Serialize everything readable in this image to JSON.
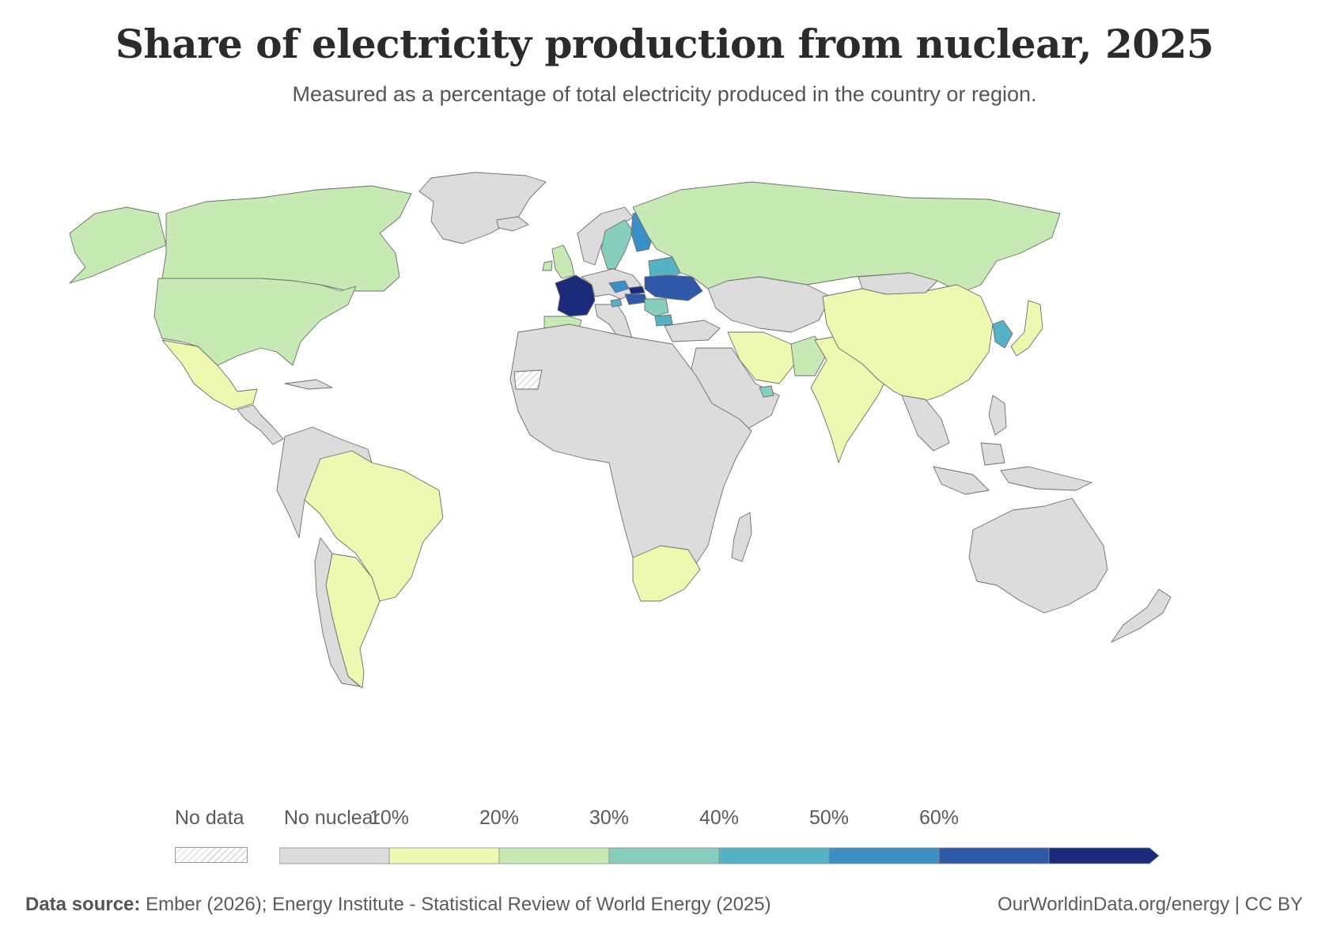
{
  "title": "Share of electricity production from nuclear, 2025",
  "subtitle": "Measured as a percentage of total electricity produced in the country or region.",
  "legend": {
    "no_data_label": "No data",
    "no_nuclear_label": "No nuclear",
    "bins": [
      {
        "label": "",
        "color": "#dcdcdc"
      },
      {
        "label": "10%",
        "color": "#edf8b1"
      },
      {
        "label": "20%",
        "color": "#c7e9b4"
      },
      {
        "label": "30%",
        "color": "#87cebe"
      },
      {
        "label": "40%",
        "color": "#56b3c6"
      },
      {
        "label": "50%",
        "color": "#3a8fc4"
      },
      {
        "label": "60%",
        "color": "#2f59a8"
      },
      {
        "label": "",
        "color": "#1b2a7a"
      }
    ],
    "no_data_color": "#ffffff",
    "no_nuclear_color": "#dcdcdc"
  },
  "regions": [
    {
      "name": "Canada",
      "shape": "canada",
      "bin": 2
    },
    {
      "name": "Greenland",
      "shape": "greenland",
      "bin": 0
    },
    {
      "name": "Alaska",
      "shape": "alaska",
      "bin": 2
    },
    {
      "name": "United States",
      "shape": "usa",
      "bin": 2
    },
    {
      "name": "Mexico",
      "shape": "mexico",
      "bin": 1
    },
    {
      "name": "Central America & Caribbean",
      "shape": "central_america",
      "bin": 0
    },
    {
      "name": "Colombia / Venezuela / Andes",
      "shape": "andes",
      "bin": 0
    },
    {
      "name": "Brazil",
      "shape": "brazil",
      "bin": 1
    },
    {
      "name": "Argentina",
      "shape": "argentina",
      "bin": 1
    },
    {
      "name": "Chile",
      "shape": "chile",
      "bin": 0
    },
    {
      "name": "Iceland",
      "shape": "iceland",
      "bin": 0
    },
    {
      "name": "United Kingdom",
      "shape": "uk",
      "bin": 2
    },
    {
      "name": "Norway",
      "shape": "norway",
      "bin": 0
    },
    {
      "name": "Sweden",
      "shape": "sweden",
      "bin": 3
    },
    {
      "name": "Finland",
      "shape": "finland",
      "bin": 5
    },
    {
      "name": "France",
      "shape": "france",
      "bin": 7
    },
    {
      "name": "Spain",
      "shape": "spain",
      "bin": 2
    },
    {
      "name": "Central Europe",
      "shape": "central_europe",
      "bin": 0
    },
    {
      "name": "Czechia",
      "shape": "czechia",
      "bin": 5
    },
    {
      "name": "Slovakia",
      "shape": "slovakia",
      "bin": 7
    },
    {
      "name": "Hungary",
      "shape": "hungary",
      "bin": 6
    },
    {
      "name": "Belarus",
      "shape": "belarus",
      "bin": 4
    },
    {
      "name": "Ukraine",
      "shape": "ukraine",
      "bin": 6
    },
    {
      "name": "Romania",
      "shape": "romania",
      "bin": 3
    },
    {
      "name": "Bulgaria",
      "shape": "bulgaria",
      "bin": 4
    },
    {
      "name": "Slovenia",
      "shape": "slovenia",
      "bin": 4
    },
    {
      "name": "Russia",
      "shape": "russia",
      "bin": 2
    },
    {
      "name": "Central Asia",
      "shape": "central_asia",
      "bin": 0
    },
    {
      "name": "Turkey",
      "shape": "turkey",
      "bin": 0
    },
    {
      "name": "Iran",
      "shape": "iran",
      "bin": 1
    },
    {
      "name": "Arabia",
      "shape": "arabia",
      "bin": 0
    },
    {
      "name": "UAE",
      "shape": "uae",
      "bin": 3
    },
    {
      "name": "Pakistan",
      "shape": "pakistan",
      "bin": 2
    },
    {
      "name": "India",
      "shape": "india",
      "bin": 1
    },
    {
      "name": "China",
      "shape": "china",
      "bin": 1
    },
    {
      "name": "Mongolia",
      "shape": "mongolia",
      "bin": 0
    },
    {
      "name": "South Korea",
      "shape": "korea",
      "bin": 4
    },
    {
      "name": "Japan",
      "shape": "japan",
      "bin": 1
    },
    {
      "name": "Southeast Asia",
      "shape": "se_asia",
      "bin": 0
    },
    {
      "name": "Indonesia",
      "shape": "indonesia",
      "bin": 0
    },
    {
      "name": "Australia",
      "shape": "australia",
      "bin": 0
    },
    {
      "name": "New Zealand",
      "shape": "nz",
      "bin": 0
    },
    {
      "name": "Africa",
      "shape": "africa",
      "bin": 0
    },
    {
      "name": "South Africa",
      "shape": "south_africa",
      "bin": 1
    },
    {
      "name": "Madagascar",
      "shape": "madagascar",
      "bin": 0
    },
    {
      "name": "Western Sahara",
      "shape": "w_sahara",
      "bin": -1
    }
  ],
  "footer": {
    "source_label": "Data source:",
    "source_text": "Ember (2026); Energy Institute - Statistical Review of World Energy (2025)",
    "credit": "OurWorldinData.org/energy | CC BY"
  }
}
